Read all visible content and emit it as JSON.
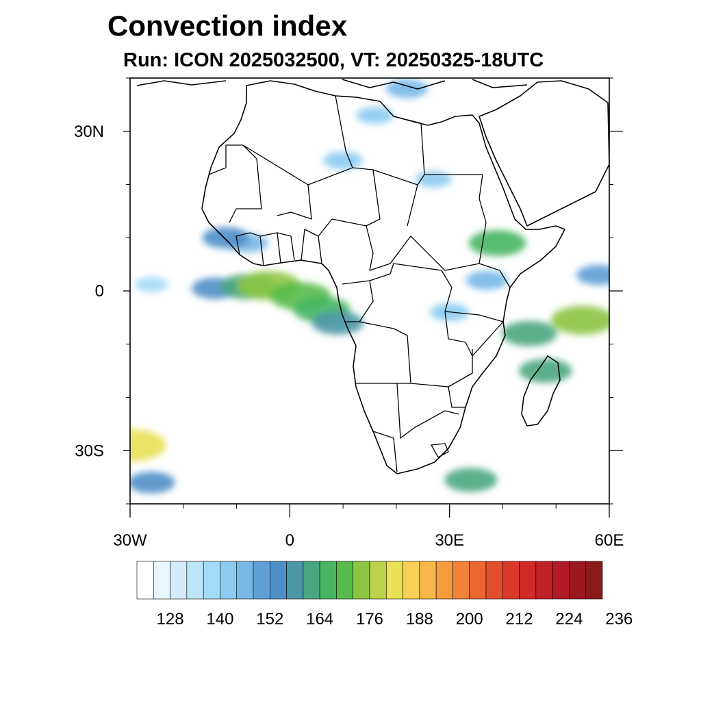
{
  "header": {
    "title": "Convection index",
    "subtitle": "Run: ICON 2025032500,  VT: 20250325-18UTC"
  },
  "map": {
    "extent": {
      "lon": [
        -30,
        60
      ],
      "lat": [
        -40,
        40
      ]
    },
    "lat_ticks": [
      {
        "value": 30,
        "label": "30N"
      },
      {
        "value": 0,
        "label": "0"
      },
      {
        "value": -30,
        "label": "30S"
      }
    ],
    "lon_ticks": [
      {
        "value": -30,
        "label": "30W"
      },
      {
        "value": 0,
        "label": "0"
      },
      {
        "value": 30,
        "label": "30E"
      },
      {
        "value": 60,
        "label": "60E"
      }
    ],
    "minor_lat_ticks": [
      40,
      20,
      10,
      -10,
      -20,
      -40
    ],
    "minor_lon_ticks": [
      -20,
      -10,
      10,
      20,
      40,
      50
    ]
  },
  "colorbar": {
    "colors": [
      "#ffffff",
      "#eaf6fd",
      "#d2ecfb",
      "#bde4f9",
      "#a5daf6",
      "#8ccbf0",
      "#78b8e6",
      "#5f9fd6",
      "#4f8fc8",
      "#4b97a6",
      "#4aa680",
      "#47b562",
      "#56bb4a",
      "#8cc542",
      "#b9d24a",
      "#e8e055",
      "#f6d052",
      "#f7b648",
      "#f59b3e",
      "#f28238",
      "#ec6631",
      "#e24e2c",
      "#db3a2a",
      "#cf2a29",
      "#c22028",
      "#b21b25",
      "#9c1820",
      "#8a1a1c"
    ],
    "labels": [
      "128",
      "140",
      "152",
      "164",
      "176",
      "188",
      "200",
      "212",
      "224",
      "236"
    ]
  },
  "chart_data": {
    "type": "heatmap",
    "title": "Convection index",
    "subtitle": "Run: ICON 2025032500,  VT: 20250325-18UTC",
    "variable": "Convection index",
    "region": "Africa",
    "xlim": [
      -30,
      60
    ],
    "ylim": [
      -40,
      40
    ],
    "colorbar_ticks": [
      128,
      140,
      152,
      164,
      176,
      188,
      200,
      212,
      224,
      236
    ],
    "cells": [
      {
        "lon": -26,
        "lat": 1.2,
        "value": 135
      },
      {
        "lon": -14,
        "lat": 0.5,
        "value": 160
      },
      {
        "lon": -8,
        "lat": 0.8,
        "value": 175
      },
      {
        "lon": -4,
        "lat": 1.0,
        "value": 190
      },
      {
        "lon": 2,
        "lat": -1.0,
        "value": 185
      },
      {
        "lon": 6,
        "lat": -3.5,
        "value": 178
      },
      {
        "lon": 9,
        "lat": -6.0,
        "value": 168
      },
      {
        "lon": -8,
        "lat": 9.0,
        "value": 150
      },
      {
        "lon": -12,
        "lat": 10.0,
        "value": 160
      },
      {
        "lon": 39,
        "lat": 9.0,
        "value": 178
      },
      {
        "lon": 37,
        "lat": 2.0,
        "value": 150
      },
      {
        "lon": 45,
        "lat": -8.0,
        "value": 175
      },
      {
        "lon": 55,
        "lat": -5.5,
        "value": 190
      },
      {
        "lon": 48,
        "lat": -15.0,
        "value": 170
      },
      {
        "lon": 58,
        "lat": 3.0,
        "value": 155
      },
      {
        "lon": 34,
        "lat": -35.5,
        "value": 170
      },
      {
        "lon": -30,
        "lat": -29.0,
        "value": 205
      },
      {
        "lon": -26,
        "lat": -36.0,
        "value": 160
      },
      {
        "lon": 10,
        "lat": 24.5,
        "value": 145
      },
      {
        "lon": 16,
        "lat": 33.0,
        "value": 142
      },
      {
        "lon": 22,
        "lat": 38.0,
        "value": 150
      },
      {
        "lon": 27,
        "lat": 21.0,
        "value": 140
      },
      {
        "lon": 30,
        "lat": -4.0,
        "value": 145
      }
    ]
  }
}
